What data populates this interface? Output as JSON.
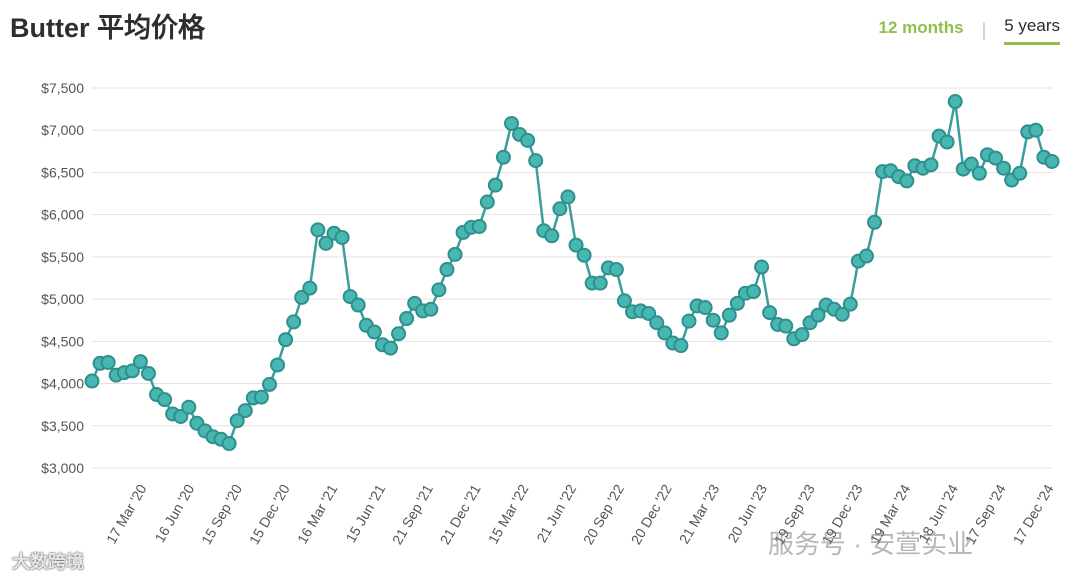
{
  "header": {
    "title": "Butter 平均价格",
    "tabs": [
      {
        "label": "12 months",
        "active": false
      },
      {
        "label": "5 years",
        "active": true
      }
    ]
  },
  "colors": {
    "line": "#3a9e9c",
    "marker": "#48b7b2",
    "accent": "#8fc04a",
    "grid": "#e3e3e3"
  },
  "chart_data": {
    "type": "line",
    "title": "Butter 平均价格",
    "xlabel": "",
    "ylabel": "",
    "ylim": [
      3000,
      7500
    ],
    "yticks": [
      "$3,000",
      "$3,500",
      "$4,000",
      "$4,500",
      "$5,000",
      "$5,500",
      "$6,000",
      "$6,500",
      "$7,000",
      "$7,500"
    ],
    "xtick_labels": [
      "17 Mar '20",
      "16 Jun '20",
      "15 Sep '20",
      "15 Dec '20",
      "16 Mar '21",
      "15 Jun '21",
      "21 Sep '21",
      "21 Dec '21",
      "15 Mar '22",
      "21 Jun '22",
      "20 Sep '22",
      "20 Dec '22",
      "21 Mar '23",
      "20 Jun '23",
      "19 Sep '23",
      "19 Dec '23",
      "19 Mar '24",
      "18 Jun '24",
      "17 Sep '24",
      "17 Dec '24"
    ],
    "grid": true,
    "series": [
      {
        "values": [
          4030,
          4240,
          4250,
          4100,
          4130,
          4150,
          4260,
          4120,
          3870,
          3810,
          3640,
          3610,
          3720,
          3530,
          3440,
          3370,
          3340,
          3290,
          3560,
          3680,
          3830,
          3840,
          3990,
          4220,
          4520,
          4730,
          5020,
          5130,
          5820,
          5660,
          5780,
          5730,
          5030,
          4930,
          4690,
          4610,
          4460,
          4420,
          4590,
          4770,
          4950,
          4860,
          4880,
          5110,
          5350,
          5530,
          5790,
          5850,
          5860,
          6150,
          6350,
          6680,
          7080,
          6950,
          6880,
          6640,
          5810,
          5750,
          6070,
          6210,
          5640,
          5520,
          5190,
          5190,
          5370,
          5350,
          4980,
          4850,
          4860,
          4830,
          4720,
          4600,
          4480,
          4450,
          4740,
          4920,
          4900,
          4750,
          4600,
          4810,
          4950,
          5070,
          5090,
          5380,
          4840,
          4700,
          4680,
          4530,
          4580,
          4720,
          4810,
          4930,
          4880,
          4820,
          4940,
          5450,
          5510,
          5910,
          6510,
          6520,
          6450,
          6400,
          6580,
          6550,
          6590,
          6930,
          6860,
          7340,
          6540,
          6600,
          6490,
          6710,
          6670,
          6550,
          6410,
          6490,
          6980,
          7000,
          6680,
          6630
        ]
      }
    ]
  },
  "watermarks": {
    "left": "大数跨境",
    "right": "服务号 · 安萱实业"
  }
}
